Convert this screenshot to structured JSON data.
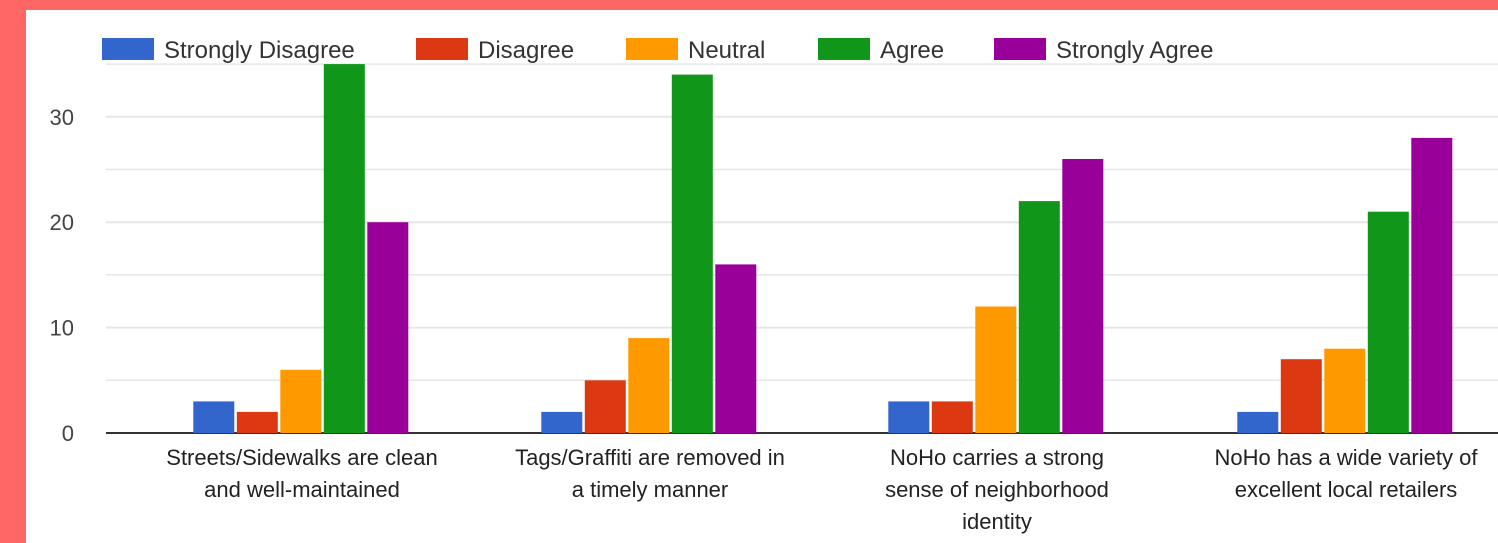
{
  "chart_data": {
    "type": "bar",
    "categories": [
      [
        "Streets/Sidewalks are clean",
        "and well-maintained"
      ],
      [
        "Tags/Graffiti are removed in",
        "a timely manner"
      ],
      [
        "NoHo carries a strong",
        "sense of neighborhood",
        "identity"
      ],
      [
        "NoHo has a wide variety of",
        "excellent local retailers"
      ]
    ],
    "series": [
      {
        "name": "Strongly Disagree",
        "color": "#3366cc",
        "values": [
          3,
          2,
          3,
          2
        ]
      },
      {
        "name": "Disagree",
        "color": "#dc3912",
        "values": [
          2,
          5,
          3,
          7
        ]
      },
      {
        "name": "Neutral",
        "color": "#ff9900",
        "values": [
          6,
          9,
          12,
          8
        ]
      },
      {
        "name": "Agree",
        "color": "#109618",
        "values": [
          35,
          34,
          22,
          21
        ]
      },
      {
        "name": "Strongly Agree",
        "color": "#990099",
        "values": [
          20,
          16,
          26,
          28
        ]
      }
    ],
    "yticks": [
      0,
      10,
      20,
      30
    ],
    "ylim": [
      0,
      35
    ],
    "grid": true,
    "legend": "top",
    "colors": {
      "border": "#ff6666",
      "background": "#ffffff",
      "gridline": "#e6e6e6",
      "axis": "#333333"
    }
  }
}
